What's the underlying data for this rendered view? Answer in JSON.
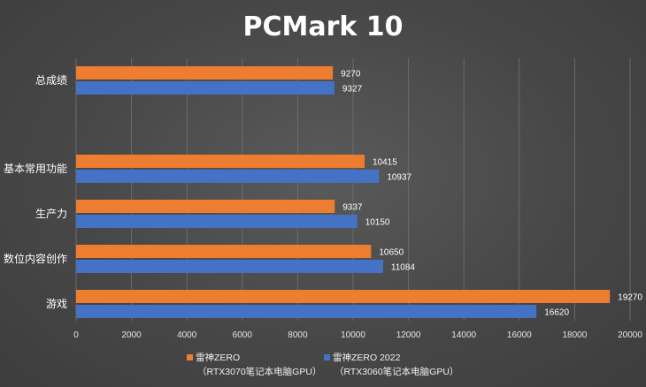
{
  "chart_data": {
    "type": "bar",
    "orientation": "horizontal",
    "title": "PCMark 10",
    "categories": [
      "总成绩",
      "基本常用功能",
      "生产力",
      "数位内容创作",
      "游戏"
    ],
    "series": [
      {
        "name_lines": [
          "雷神ZERO",
          "（RTX3070笔记本电脑GPU）"
        ],
        "color": "#ED7D31",
        "values": [
          9270,
          10415,
          9337,
          10650,
          19270
        ]
      },
      {
        "name_lines": [
          "雷神ZERO 2022",
          "（RTX3060笔记本电脑GPU）"
        ],
        "color": "#4472C4",
        "values": [
          9327,
          10937,
          10150,
          11084,
          16620
        ]
      }
    ],
    "xlim": [
      0,
      20000
    ],
    "ticks": [
      0,
      2000,
      4000,
      6000,
      8000,
      10000,
      12000,
      14000,
      16000,
      18000,
      20000
    ],
    "grid": true,
    "legend": "bottom"
  }
}
